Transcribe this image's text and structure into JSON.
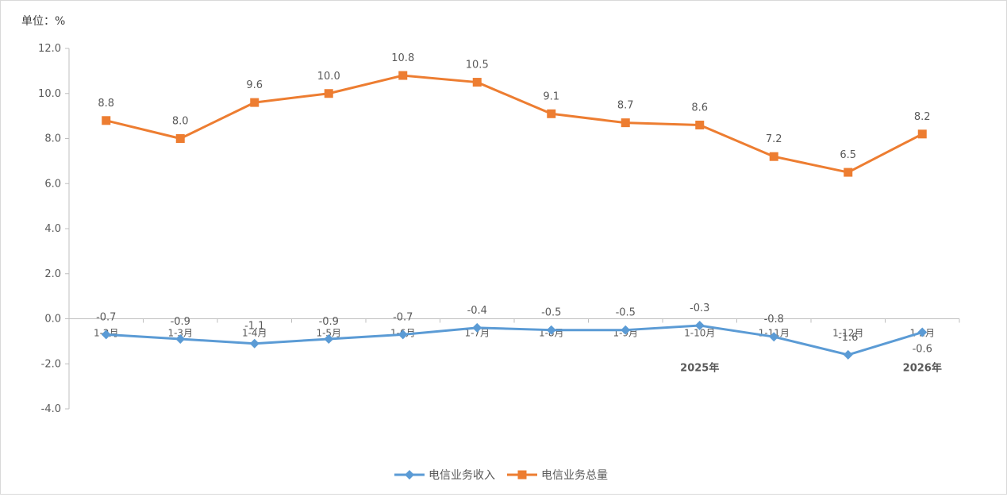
{
  "unit_label": "单位：%",
  "chart_data": {
    "type": "line",
    "categories": [
      "1-2月",
      "1-3月",
      "1-4月",
      "1-5月",
      "1-6月",
      "1-7月",
      "1-8月",
      "1-9月",
      "1-10月",
      "1-11月",
      "1-12月",
      "1-2月"
    ],
    "year_labels": [
      {
        "text": "2025年",
        "category_index": 8
      },
      {
        "text": "2026年",
        "category_index": 11
      }
    ],
    "ylim": [
      -4.0,
      12.0
    ],
    "yticks": [
      12.0,
      10.0,
      8.0,
      6.0,
      4.0,
      2.0,
      0.0,
      -2.0,
      -4.0
    ],
    "grid": false,
    "legend_position": "bottom",
    "series": [
      {
        "name": "电信业务收入",
        "color": "#5b9bd5",
        "marker": "diamond",
        "values": [
          -0.7,
          -0.9,
          -1.1,
          -0.9,
          -0.7,
          -0.4,
          -0.5,
          -0.5,
          -0.3,
          -0.8,
          -1.6,
          -0.6
        ]
      },
      {
        "name": "电信业务总量",
        "color": "#ed7d31",
        "marker": "square",
        "values": [
          8.8,
          8.0,
          9.6,
          10.0,
          10.8,
          10.5,
          9.1,
          8.7,
          8.6,
          7.2,
          6.5,
          8.2
        ]
      }
    ]
  }
}
